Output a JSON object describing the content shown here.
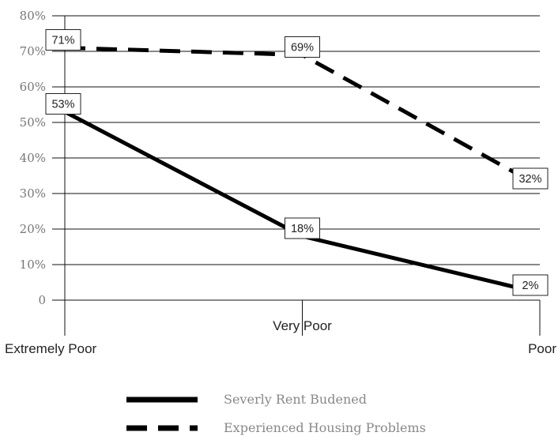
{
  "chart_data": {
    "type": "line",
    "categories": [
      "Extremely Poor",
      "Very Poor",
      "Poor"
    ],
    "y_ticks": [
      "0",
      "10%",
      "20%",
      "30%",
      "40%",
      "50%",
      "60%",
      "70%",
      "80%"
    ],
    "ylim": [
      0,
      80
    ],
    "grid": true,
    "legend_position": "bottom",
    "series": [
      {
        "name": "Severly Rent Budened",
        "values": [
          53,
          18,
          2
        ],
        "labels": [
          "53%",
          "18%",
          "2%"
        ],
        "line_style": "solid",
        "color": "#000000"
      },
      {
        "name": "Experienced Housing Problems",
        "values": [
          71,
          69,
          32
        ],
        "labels": [
          "71%",
          "69%",
          "32%"
        ],
        "line_style": "dashed",
        "color": "#000000"
      }
    ]
  }
}
